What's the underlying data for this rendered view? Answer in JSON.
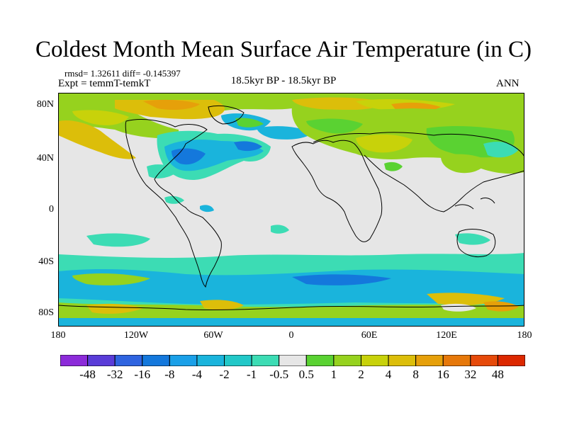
{
  "title": "Coldest Month Mean Surface Air Temperature (in C)",
  "stats": {
    "rmsd_label": "rmsd= 1.32611 diff= -0.145397",
    "expt_label": "Expt = temmT-temkT",
    "period_label": "18.5kyr BP - 18.5kyr BP",
    "season_label": "ANN"
  },
  "axes": {
    "lon_ticks": [
      "180",
      "120W",
      "60W",
      "0",
      "60E",
      "120E",
      "180"
    ],
    "lat_ticks": [
      "80N",
      "40N",
      "0",
      "40S",
      "80S"
    ]
  },
  "colorbar": {
    "colors": [
      "#8c2bd9",
      "#5a3cd8",
      "#2f64e0",
      "#1478dc",
      "#1aa0e8",
      "#1ab4dc",
      "#22c8c8",
      "#3cdcb4",
      "#e6e6e6",
      "#5ad232",
      "#96d21e",
      "#c8d20a",
      "#dcbe0a",
      "#e6a00a",
      "#e6780a",
      "#e64a0a",
      "#dc2800"
    ],
    "labels": [
      "-48",
      "-32",
      "-16",
      "-8",
      "-4",
      "-2",
      "-1",
      "-0.5",
      "0.5",
      "1",
      "2",
      "4",
      "8",
      "16",
      "32",
      "48"
    ]
  },
  "legend_colors": {
    "neutral": "#e6e6e6",
    "cool_strong": "#1478dc",
    "cool": "#1ab4dc",
    "cool_light": "#3cdcb4",
    "warm_light": "#5ad232",
    "warm": "#96d21e",
    "warm_strong": "#dcbe0a",
    "hot": "#e6a00a"
  }
}
